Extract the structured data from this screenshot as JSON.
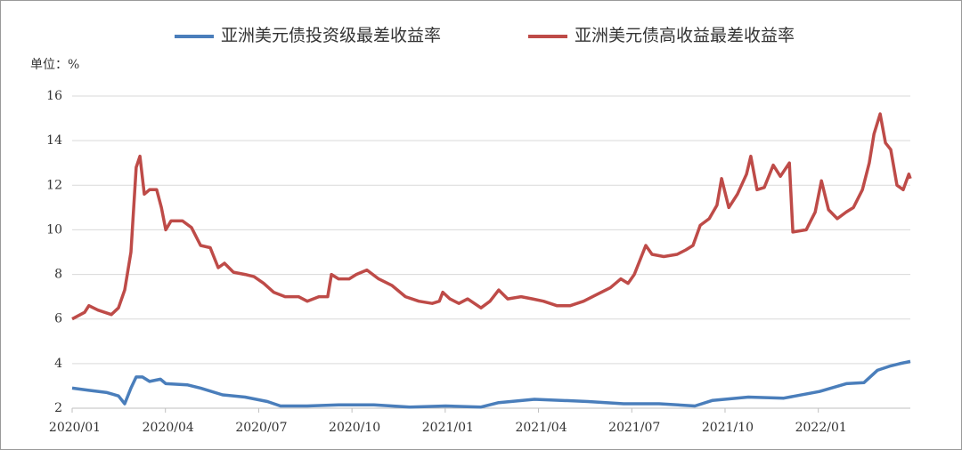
{
  "chart_data": {
    "type": "line",
    "unit_label": "单位：%",
    "xlim": [
      0,
      26.96
    ],
    "xticks": [
      {
        "value": 0,
        "label": "2020/01"
      },
      {
        "value": 3,
        "label": "2020/04"
      },
      {
        "value": 6,
        "label": "2020/07"
      },
      {
        "value": 9,
        "label": "2020/10"
      },
      {
        "value": 12,
        "label": "2021/01"
      },
      {
        "value": 15,
        "label": "2021/04"
      },
      {
        "value": 18,
        "label": "2021/07"
      },
      {
        "value": 21,
        "label": "2021/10"
      },
      {
        "value": 24,
        "label": "2022/01"
      }
    ],
    "ylim": [
      2,
      16
    ],
    "yticks": [
      2,
      4,
      6,
      8,
      10,
      12,
      14,
      16
    ],
    "grid": true,
    "series": [
      {
        "name": "亚洲美元债投资级最差收益率",
        "color": "#4a7ebb",
        "x": [
          0,
          0.54,
          1.12,
          1.49,
          1.69,
          1.89,
          2.06,
          2.26,
          2.49,
          2.84,
          3.01,
          3.7,
          4.13,
          4.84,
          5.56,
          6.28,
          6.7,
          7.56,
          8.57,
          9.71,
          10.86,
          12.01,
          13.15,
          13.72,
          14.87,
          15.73,
          16.59,
          17.74,
          18.88,
          20.03,
          20.6,
          21.75,
          22.89,
          24.04,
          24.9,
          25.47,
          25.9,
          26.33,
          26.62,
          26.96
        ],
        "values": [
          2.9,
          2.8,
          2.7,
          2.55,
          2.2,
          2.9,
          3.4,
          3.4,
          3.2,
          3.3,
          3.1,
          3.05,
          2.9,
          2.6,
          2.5,
          2.3,
          2.1,
          2.1,
          2.15,
          2.15,
          2.05,
          2.1,
          2.05,
          2.25,
          2.4,
          2.35,
          2.3,
          2.2,
          2.2,
          2.1,
          2.35,
          2.5,
          2.45,
          2.75,
          3.1,
          3.15,
          3.7,
          3.9,
          4.0,
          4.1
        ]
      },
      {
        "name": "亚洲美元债高收益最差收益率",
        "color": "#be4b48",
        "x": [
          0,
          0.4,
          0.54,
          0.83,
          1.26,
          1.49,
          1.69,
          1.89,
          2.06,
          2.18,
          2.32,
          2.49,
          2.72,
          2.87,
          3.01,
          3.18,
          3.55,
          3.84,
          4.13,
          4.44,
          4.7,
          4.9,
          5.19,
          5.56,
          5.85,
          6.16,
          6.48,
          6.85,
          7.28,
          7.56,
          7.94,
          8.22,
          8.34,
          8.57,
          8.91,
          9.14,
          9.48,
          9.86,
          10.29,
          10.72,
          11.15,
          11.58,
          11.81,
          11.92,
          12.15,
          12.44,
          12.72,
          13.15,
          13.44,
          13.72,
          14.01,
          14.44,
          14.81,
          15.16,
          15.59,
          16.02,
          16.45,
          16.88,
          17.31,
          17.65,
          17.88,
          18.08,
          18.45,
          18.65,
          19.03,
          19.46,
          19.74,
          19.97,
          20.2,
          20.49,
          20.74,
          20.89,
          21.12,
          21.4,
          21.69,
          21.83,
          22.03,
          22.26,
          22.55,
          22.78,
          23.07,
          23.18,
          23.61,
          23.9,
          24.1,
          24.33,
          24.61,
          24.9,
          25.13,
          25.42,
          25.64,
          25.79,
          25.99,
          26.16,
          26.33,
          26.53,
          26.73,
          26.91,
          26.96
        ],
        "values": [
          6.0,
          6.3,
          6.6,
          6.4,
          6.2,
          6.5,
          7.3,
          9.0,
          12.8,
          13.3,
          11.6,
          11.8,
          11.8,
          11.0,
          10.0,
          10.4,
          10.4,
          10.1,
          9.3,
          9.2,
          8.3,
          8.5,
          8.1,
          8.0,
          7.9,
          7.6,
          7.2,
          7.0,
          7.0,
          6.8,
          7.0,
          7.0,
          8.0,
          7.8,
          7.8,
          8.0,
          8.2,
          7.8,
          7.5,
          7.0,
          6.8,
          6.7,
          6.8,
          7.2,
          6.9,
          6.7,
          6.9,
          6.5,
          6.8,
          7.3,
          6.9,
          7.0,
          6.9,
          6.8,
          6.6,
          6.6,
          6.8,
          7.1,
          7.4,
          7.8,
          7.6,
          8.0,
          9.3,
          8.9,
          8.8,
          8.9,
          9.1,
          9.3,
          10.2,
          10.5,
          11.1,
          12.3,
          11.0,
          11.6,
          12.5,
          13.3,
          11.8,
          11.9,
          12.9,
          12.4,
          13.0,
          9.9,
          10.0,
          10.8,
          12.2,
          10.9,
          10.5,
          10.8,
          11.0,
          11.8,
          13.0,
          14.3,
          15.2,
          13.9,
          13.6,
          12.0,
          11.8,
          12.5,
          12.3
        ]
      }
    ]
  }
}
